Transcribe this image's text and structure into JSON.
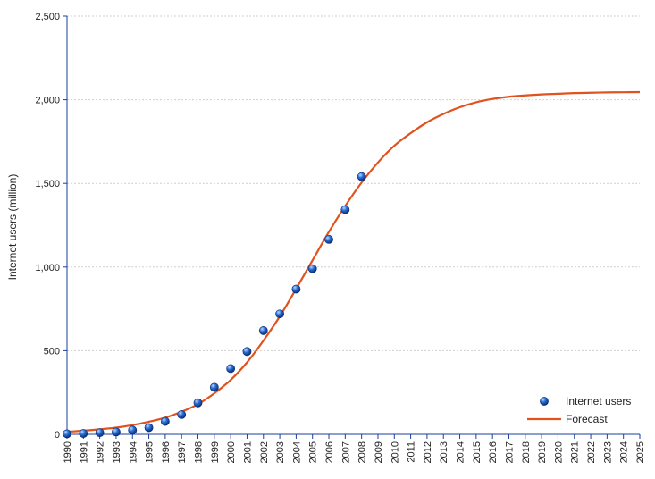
{
  "chart_data": {
    "type": "scatter",
    "title": "",
    "xlabel": "",
    "ylabel": "Internet users (million)",
    "xlim": [
      1990,
      2025
    ],
    "ylim": [
      0,
      2500
    ],
    "y_ticks": [
      0,
      500,
      1000,
      1500,
      2000,
      2500
    ],
    "y_tick_labels": [
      "0",
      "500",
      "1,000",
      "1,500",
      "2,000",
      "2,500"
    ],
    "x_ticks": [
      1990,
      1991,
      1992,
      1993,
      1994,
      1995,
      1996,
      1997,
      1998,
      1999,
      2000,
      2001,
      2002,
      2003,
      2004,
      2005,
      2006,
      2007,
      2008,
      2009,
      2010,
      2011,
      2012,
      2013,
      2014,
      2015,
      2016,
      2017,
      2018,
      2019,
      2020,
      2021,
      2022,
      2023,
      2024,
      2025
    ],
    "x_tick_labels": [
      "1990",
      "1991",
      "1992",
      "1993",
      "1994",
      "1995",
      "1996",
      "1997",
      "1998",
      "1999",
      "2000",
      "2001",
      "2002",
      "2003",
      "2004",
      "2005",
      "2006",
      "2007",
      "2008",
      "2009",
      "2010",
      "2011",
      "2012",
      "2013",
      "2014",
      "2015",
      "2016",
      "2017",
      "2018",
      "2019",
      "2020",
      "2021",
      "2022",
      "2023",
      "2024",
      "2025"
    ],
    "grid": true,
    "legend_position": "bottom-right",
    "series": [
      {
        "name": "Internet users",
        "type": "scatter",
        "color": "#1f5fbf",
        "x": [
          1990,
          1991,
          1992,
          1993,
          1994,
          1995,
          1996,
          1997,
          1998,
          1999,
          2000,
          2001,
          2002,
          2003,
          2004,
          2005,
          2006,
          2007,
          2008
        ],
        "y": [
          3,
          5,
          10,
          14,
          25,
          40,
          77,
          118,
          188,
          281,
          393,
          495,
          620,
          720,
          868,
          990,
          1165,
          1343,
          1540
        ]
      },
      {
        "name": "Forecast",
        "type": "line",
        "color": "#e0531f",
        "x": [
          1990,
          1991,
          1992,
          1993,
          1994,
          1995,
          1996,
          1997,
          1998,
          1999,
          2000,
          2001,
          2002,
          2003,
          2004,
          2005,
          2006,
          2007,
          2008,
          2009,
          2010,
          2011,
          2012,
          2013,
          2014,
          2015,
          2016,
          2017,
          2018,
          2019,
          2020,
          2021,
          2022,
          2023,
          2024,
          2025
        ],
        "y": [
          15,
          22,
          30,
          40,
          55,
          75,
          100,
          135,
          180,
          245,
          325,
          430,
          560,
          705,
          870,
          1040,
          1210,
          1365,
          1505,
          1625,
          1725,
          1800,
          1865,
          1915,
          1955,
          1985,
          2005,
          2018,
          2026,
          2032,
          2036,
          2040,
          2042,
          2044,
          2045,
          2046
        ]
      }
    ]
  }
}
